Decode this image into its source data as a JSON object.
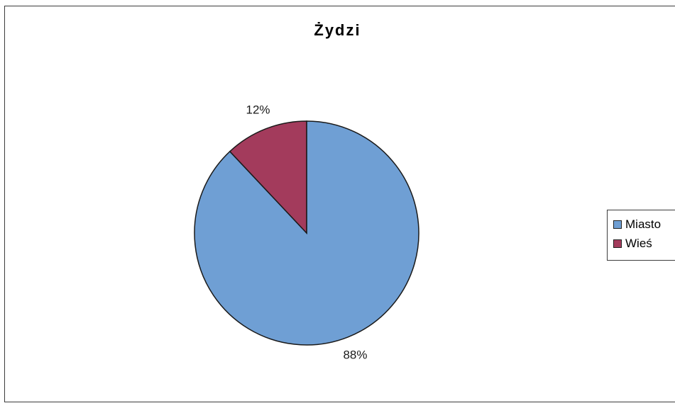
{
  "chart_data": {
    "type": "pie",
    "title": "Żydzi",
    "categories": [
      "Miasto",
      "Wieś"
    ],
    "values": [
      88,
      12
    ],
    "data_labels": [
      "88%",
      "12%"
    ],
    "colors": [
      "#6f9fd4",
      "#a33b5c"
    ],
    "legend_position": "right"
  }
}
